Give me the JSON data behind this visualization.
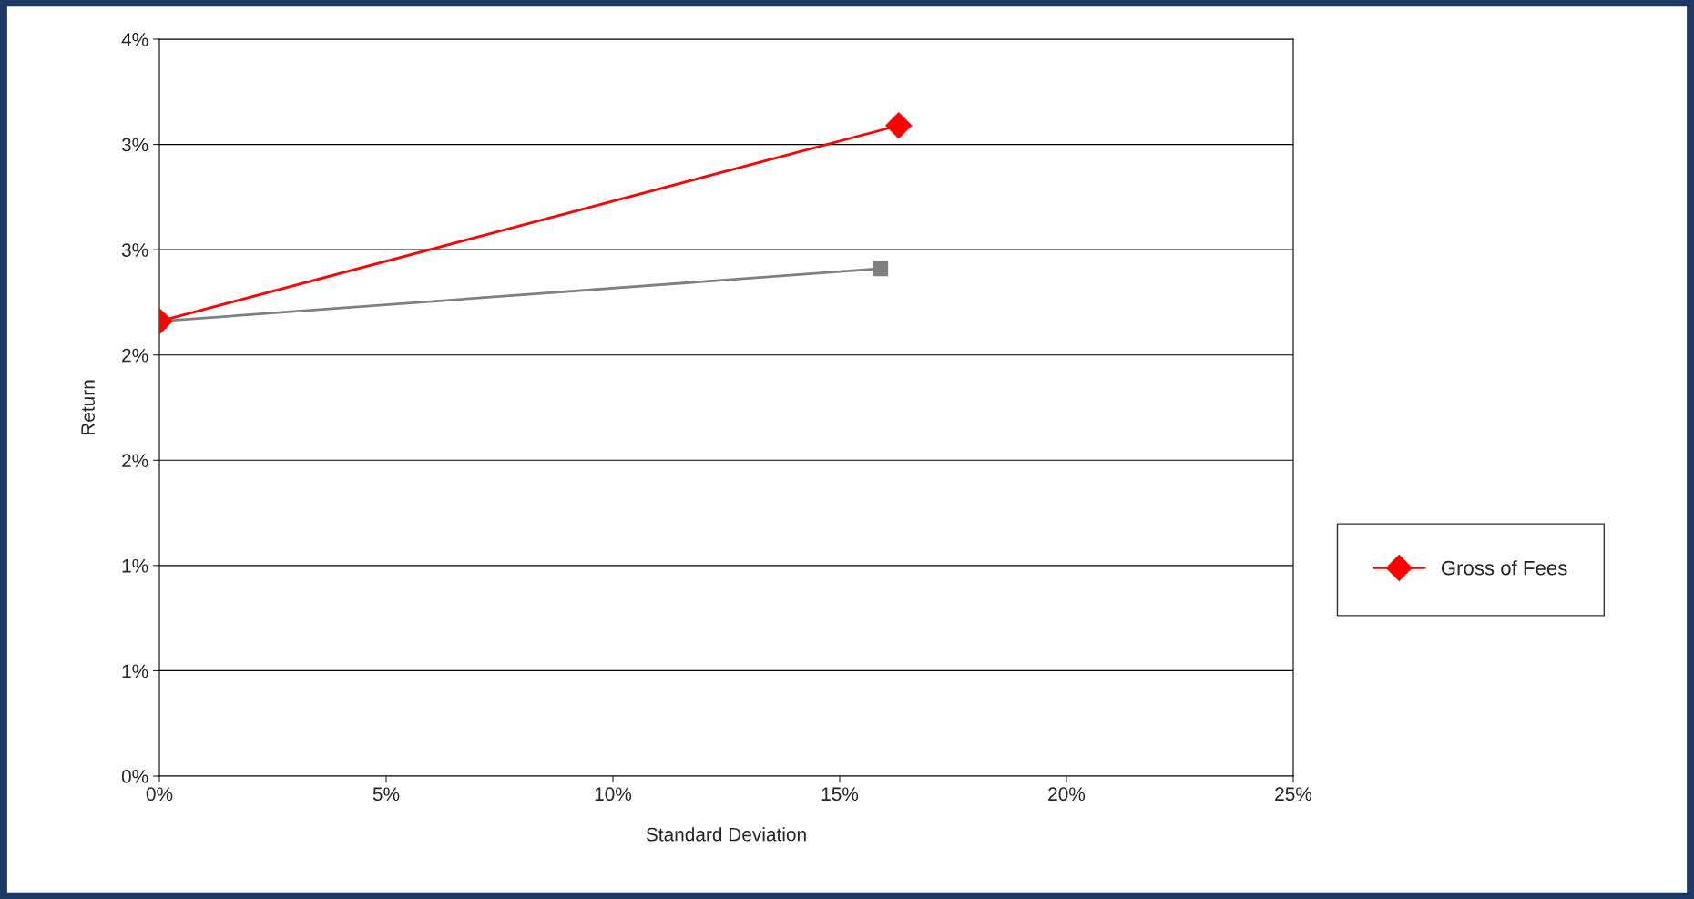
{
  "chart_data": {
    "type": "line",
    "xlabel": "Standard Deviation",
    "ylabel": "Return",
    "series": [
      {
        "name": "Gross of Fees",
        "color": "#ff0000",
        "x": [
          0,
          16.3
        ],
        "values": [
          2.16,
          3.09
        ],
        "marker": "diamond"
      },
      {
        "color": "#808080",
        "x": [
          0,
          15.9
        ],
        "values": [
          2.16,
          2.41
        ],
        "marker": "square"
      }
    ],
    "xlim": [
      0,
      25
    ],
    "xticks": [
      {
        "value": 0,
        "label": "0%"
      },
      {
        "value": 5,
        "label": "5%"
      },
      {
        "value": 10,
        "label": "10%"
      },
      {
        "value": 15,
        "label": "15%"
      },
      {
        "value": 20,
        "label": "20%"
      },
      {
        "value": 25,
        "label": "25%"
      }
    ],
    "ylim": [
      0,
      3.5
    ],
    "yticks": [
      {
        "value": 0,
        "label": "0%"
      },
      {
        "value": 0.5,
        "label": "1%"
      },
      {
        "value": 1,
        "label": "1%"
      },
      {
        "value": 1.5,
        "label": "2%"
      },
      {
        "value": 2,
        "label": "2%"
      },
      {
        "value": 2.5,
        "label": "3%"
      },
      {
        "value": 3,
        "label": "3%"
      },
      {
        "value": 3.5,
        "label": "4%"
      }
    ],
    "grid": "y",
    "legend": "right"
  }
}
